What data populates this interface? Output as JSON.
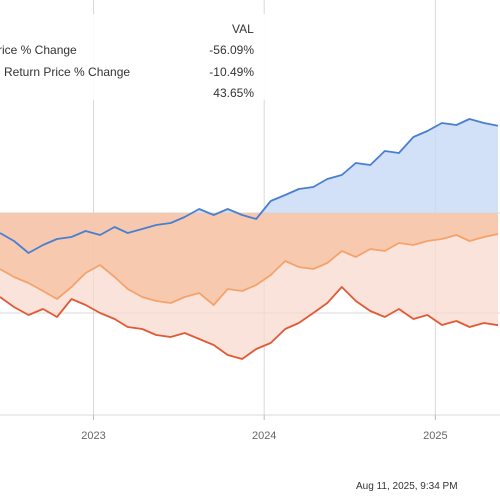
{
  "legend": {
    "header": "VAL",
    "rows": [
      {
        "label": "rice % Change",
        "value": "-56.09%",
        "color": "#e06040"
      },
      {
        "label": "l Return Price % Change",
        "value": "-10.49%",
        "color": "#f4a070"
      },
      {
        "label": "",
        "value": "43.65%",
        "color": "#5b8fd6"
      }
    ]
  },
  "timestamp": "Aug 11, 2025, 9:34 PM",
  "colors": {
    "blue": "#4a7fd0",
    "blue_fill": "#c7daf5",
    "orange": "#f5a36c",
    "orange_fill": "#f6c3a4",
    "red": "#e05a36",
    "red_fill": "#f7d9cf",
    "grid": "#d9d9d9"
  },
  "chart_data": {
    "type": "line",
    "x_labels": [
      "2023",
      "2024",
      "2025"
    ],
    "x_label_dates": [
      "2023-01-01",
      "2024-01-01",
      "2025-01-01"
    ],
    "y_gridlines_pct": [
      0,
      -50
    ],
    "ylim": [
      -100,
      100
    ],
    "grid": true,
    "legend": "top-left",
    "series": [
      {
        "key": "blue",
        "values": [
          [
            "2022-06-15",
            -10
          ],
          [
            "2022-07-15",
            -14
          ],
          [
            "2022-08-15",
            -20
          ],
          [
            "2022-09-15",
            -16
          ],
          [
            "2022-10-15",
            -13
          ],
          [
            "2022-11-15",
            -12
          ],
          [
            "2022-12-15",
            -9
          ],
          [
            "2023-01-15",
            -11
          ],
          [
            "2023-02-15",
            -7
          ],
          [
            "2023-03-15",
            -10
          ],
          [
            "2023-04-15",
            -8
          ],
          [
            "2023-05-15",
            -6
          ],
          [
            "2023-06-15",
            -5
          ],
          [
            "2023-07-15",
            -2
          ],
          [
            "2023-08-15",
            2
          ],
          [
            "2023-09-15",
            -1
          ],
          [
            "2023-10-15",
            2
          ],
          [
            "2023-11-15",
            -1
          ],
          [
            "2023-12-15",
            -3
          ],
          [
            "2024-01-15",
            6
          ],
          [
            "2024-02-15",
            9
          ],
          [
            "2024-03-15",
            12
          ],
          [
            "2024-04-15",
            13
          ],
          [
            "2024-05-15",
            17
          ],
          [
            "2024-06-15",
            19
          ],
          [
            "2024-07-15",
            25
          ],
          [
            "2024-08-15",
            24
          ],
          [
            "2024-09-15",
            31
          ],
          [
            "2024-10-15",
            30
          ],
          [
            "2024-11-15",
            38
          ],
          [
            "2024-12-15",
            41
          ],
          [
            "2025-01-15",
            45
          ],
          [
            "2025-02-15",
            44
          ],
          [
            "2025-03-15",
            47
          ],
          [
            "2025-04-15",
            45
          ],
          [
            "2025-05-15",
            43.65
          ]
        ]
      },
      {
        "key": "orange",
        "values": [
          [
            "2022-06-15",
            -28
          ],
          [
            "2022-07-15",
            -32
          ],
          [
            "2022-08-15",
            -35
          ],
          [
            "2022-09-15",
            -39
          ],
          [
            "2022-10-15",
            -43
          ],
          [
            "2022-11-15",
            -37
          ],
          [
            "2022-12-15",
            -30
          ],
          [
            "2023-01-15",
            -26
          ],
          [
            "2023-02-15",
            -32
          ],
          [
            "2023-03-15",
            -38
          ],
          [
            "2023-04-15",
            -42
          ],
          [
            "2023-05-15",
            -44
          ],
          [
            "2023-06-15",
            -45
          ],
          [
            "2023-07-15",
            -42
          ],
          [
            "2023-08-15",
            -40
          ],
          [
            "2023-09-15",
            -46
          ],
          [
            "2023-10-15",
            -38
          ],
          [
            "2023-11-15",
            -39
          ],
          [
            "2023-12-15",
            -36
          ],
          [
            "2024-01-15",
            -31
          ],
          [
            "2024-02-15",
            -24
          ],
          [
            "2024-03-15",
            -27
          ],
          [
            "2024-04-15",
            -28
          ],
          [
            "2024-05-15",
            -25
          ],
          [
            "2024-06-15",
            -19
          ],
          [
            "2024-07-15",
            -22
          ],
          [
            "2024-08-15",
            -18
          ],
          [
            "2024-09-15",
            -19
          ],
          [
            "2024-10-15",
            -15
          ],
          [
            "2024-11-15",
            -16
          ],
          [
            "2024-12-15",
            -14
          ],
          [
            "2025-01-15",
            -13
          ],
          [
            "2025-02-15",
            -11
          ],
          [
            "2025-03-15",
            -14
          ],
          [
            "2025-04-15",
            -12
          ],
          [
            "2025-05-15",
            -10.49
          ]
        ]
      },
      {
        "key": "red",
        "values": [
          [
            "2022-06-15",
            -42
          ],
          [
            "2022-07-15",
            -47
          ],
          [
            "2022-08-15",
            -51
          ],
          [
            "2022-09-15",
            -48
          ],
          [
            "2022-10-15",
            -52
          ],
          [
            "2022-11-15",
            -43
          ],
          [
            "2022-12-15",
            -46
          ],
          [
            "2023-01-15",
            -50
          ],
          [
            "2023-02-15",
            -53
          ],
          [
            "2023-03-15",
            -57
          ],
          [
            "2023-04-15",
            -58
          ],
          [
            "2023-05-15",
            -61
          ],
          [
            "2023-06-15",
            -62
          ],
          [
            "2023-07-15",
            -60
          ],
          [
            "2023-08-15",
            -63
          ],
          [
            "2023-09-15",
            -66
          ],
          [
            "2023-10-15",
            -71
          ],
          [
            "2023-11-15",
            -73
          ],
          [
            "2023-12-15",
            -68
          ],
          [
            "2024-01-15",
            -65
          ],
          [
            "2024-02-15",
            -58
          ],
          [
            "2024-03-15",
            -55
          ],
          [
            "2024-04-15",
            -50
          ],
          [
            "2024-05-15",
            -45
          ],
          [
            "2024-06-15",
            -37
          ],
          [
            "2024-07-15",
            -44
          ],
          [
            "2024-08-15",
            -49
          ],
          [
            "2024-09-15",
            -52
          ],
          [
            "2024-10-15",
            -48
          ],
          [
            "2024-11-15",
            -53
          ],
          [
            "2024-12-15",
            -51
          ],
          [
            "2025-01-15",
            -56
          ],
          [
            "2025-02-15",
            -54
          ],
          [
            "2025-03-15",
            -57
          ],
          [
            "2025-04-15",
            -55
          ],
          [
            "2025-05-15",
            -56.09
          ]
        ]
      }
    ]
  }
}
